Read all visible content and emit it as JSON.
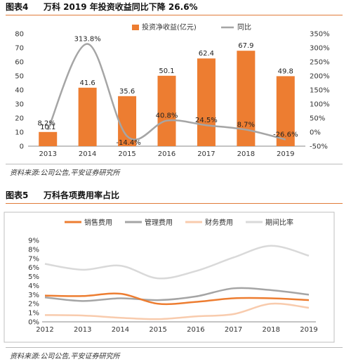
{
  "figures": [
    {
      "number": "图表4",
      "title": "万科 2019 年投资收益同比下降 26.6%",
      "source": "资料来源:公司公告,平安证券研究所"
    },
    {
      "number": "图表5",
      "title": "万科各项费用率占比",
      "source": "资料来源:公司公告,平安证券研究所"
    }
  ],
  "chart_data": [
    {
      "type": "bar",
      "categories": [
        "2013",
        "2014",
        "2015",
        "2016",
        "2017",
        "2018",
        "2019"
      ],
      "series": [
        {
          "name": "投资净收益(亿元)",
          "type": "bar",
          "axis": "left",
          "color": "#ed7d31",
          "values": [
            10.1,
            41.6,
            35.6,
            50.1,
            62.4,
            67.9,
            49.8
          ],
          "labels": [
            "10.1",
            "41.6",
            "35.6",
            "50.1",
            "62.4",
            "67.9",
            "49.8"
          ]
        },
        {
          "name": "同比",
          "type": "line",
          "axis": "right",
          "color": "#a5a5a5",
          "values": [
            8.2,
            313.8,
            -14.4,
            40.8,
            24.5,
            8.7,
            -26.6
          ],
          "labels": [
            "8.2%",
            "313.8%",
            "-14.4%",
            "40.8%",
            "24.5%",
            "8.7%",
            "-26.6%"
          ]
        }
      ],
      "ylim_left": [
        0,
        80
      ],
      "yticks_left": [
        "0",
        "10",
        "20",
        "30",
        "40",
        "50",
        "60",
        "70",
        "80"
      ],
      "ylim_right": [
        -50,
        350
      ],
      "yticks_right": [
        "-50%",
        "0%",
        "50%",
        "100%",
        "150%",
        "200%",
        "250%",
        "300%",
        "350%"
      ],
      "legend_position": "top",
      "grid": false
    },
    {
      "type": "line",
      "categories": [
        "2012",
        "2013",
        "2014",
        "2015",
        "2016",
        "2017",
        "2018",
        "2019"
      ],
      "series": [
        {
          "name": "销售费用",
          "color": "#ed7d31",
          "values": [
            2.9,
            2.85,
            3.1,
            2.0,
            2.2,
            2.6,
            2.6,
            2.4
          ]
        },
        {
          "name": "管理费用",
          "color": "#a5a5a5",
          "values": [
            2.7,
            2.3,
            2.6,
            2.4,
            2.8,
            3.7,
            3.5,
            3.0
          ]
        },
        {
          "name": "财务费用",
          "color": "#f8cbad",
          "values": [
            0.75,
            0.7,
            0.45,
            0.3,
            0.6,
            0.85,
            2.0,
            1.55
          ]
        },
        {
          "name": "期间比率",
          "color": "#d9d9d9",
          "values": [
            6.4,
            5.75,
            6.2,
            4.8,
            5.6,
            7.1,
            8.4,
            7.3
          ]
        }
      ],
      "ylim": [
        0,
        9
      ],
      "yticks": [
        "0%",
        "1%",
        "2%",
        "3%",
        "4%",
        "5%",
        "6%",
        "7%",
        "8%",
        "9%"
      ],
      "legend_position": "top",
      "grid": false
    }
  ]
}
